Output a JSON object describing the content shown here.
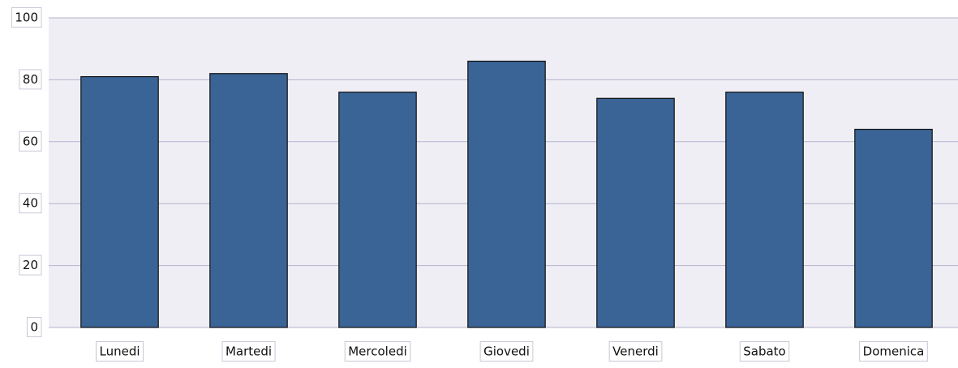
{
  "chart_data": {
    "type": "bar",
    "categories": [
      "Lunedi",
      "Martedi",
      "Mercoledi",
      "Giovedi",
      "Venerdi",
      "Sabato",
      "Domenica"
    ],
    "values": [
      81,
      82,
      76,
      86,
      74,
      76,
      64
    ],
    "color": "#3a6496",
    "ylim": [
      0,
      100
    ],
    "yticks": [
      0,
      20,
      40,
      60,
      80,
      100
    ],
    "grid": true
  }
}
